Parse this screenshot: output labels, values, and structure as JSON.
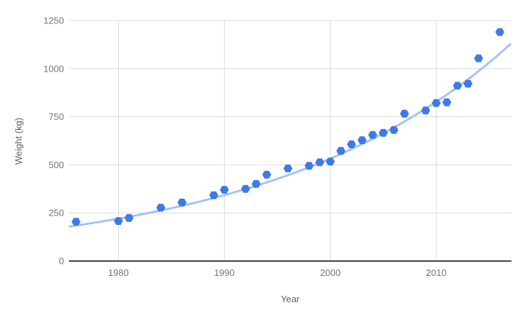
{
  "chart_data": {
    "type": "scatter",
    "title": "",
    "xlabel": "Year",
    "ylabel": "Weight (kg)",
    "xlim": [
      1975.4,
      2017.1
    ],
    "ylim": [
      0,
      1250
    ],
    "x_ticks": [
      1980,
      1990,
      2000,
      2010
    ],
    "y_ticks": [
      0,
      250,
      500,
      750,
      1000,
      1250
    ],
    "grid": true,
    "legend": "none",
    "series": [
      {
        "name": "Weight (kg)",
        "marker": "hexagon",
        "color": "#3d7ae5",
        "points": [
          [
            1976,
            204.6
          ],
          [
            1980,
            208.2
          ],
          [
            1981,
            223.8
          ],
          [
            1984,
            277.6
          ],
          [
            1986,
            304.4
          ],
          [
            1989,
            342.5
          ],
          [
            1990,
            370.4
          ],
          [
            1992,
            375.1
          ],
          [
            1993,
            401.0
          ],
          [
            1994,
            449.0
          ],
          [
            1996,
            481.3
          ],
          [
            1998,
            495.3
          ],
          [
            1999,
            513.0
          ],
          [
            2000,
            517.1
          ],
          [
            2001,
            572.4
          ],
          [
            2002,
            606.7
          ],
          [
            2003,
            628.2
          ],
          [
            2004,
            655.9
          ],
          [
            2005,
            666.3
          ],
          [
            2006,
            681.3
          ],
          [
            2007,
            766.1
          ],
          [
            2009,
            782.5
          ],
          [
            2010,
            821.2
          ],
          [
            2011,
            824.9
          ],
          [
            2012,
            911.3
          ],
          [
            2013,
            921.7
          ],
          [
            2014,
            1054.0
          ],
          [
            2016,
            1190.5
          ]
        ]
      }
    ],
    "trendline": {
      "type": "exponential",
      "color": "#a4c2f4",
      "a": 180,
      "b": 0.0441,
      "t0": 1975.4,
      "t_start": 1975.4,
      "t_end": 2017.1
    }
  },
  "colors": {
    "background": "#ffffff",
    "point": "#3d7ae5",
    "trendline": "#a4c2f4",
    "gridline": "#dcdcdc",
    "axis_line": "#424242",
    "tick_label": "#757575",
    "axis_title": "#5f5f5f"
  }
}
